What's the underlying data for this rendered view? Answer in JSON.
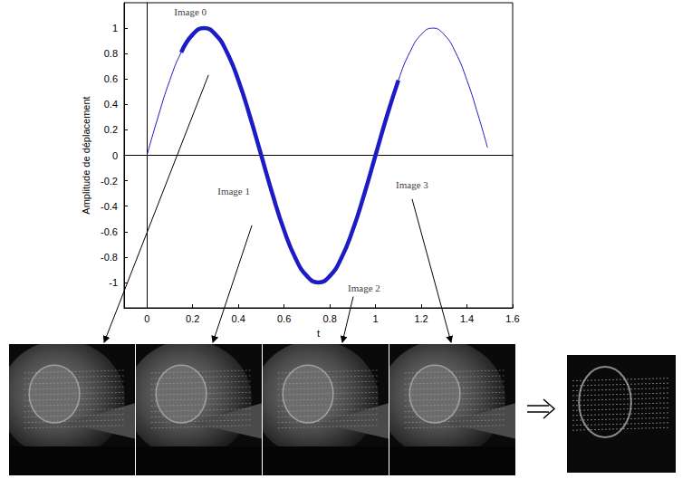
{
  "chart_data": {
    "type": "line",
    "xlabel": "t",
    "ylabel": "Amplitude de déplacement",
    "x": [
      0,
      0.05,
      0.1,
      0.15,
      0.2,
      0.25,
      0.3,
      0.35,
      0.4,
      0.45,
      0.5,
      0.55,
      0.6,
      0.65,
      0.7,
      0.75,
      0.8,
      0.85,
      0.9,
      0.95,
      1.0,
      1.05,
      1.1,
      1.15,
      1.2,
      1.25,
      1.3,
      1.35,
      1.4,
      1.45,
      1.49
    ],
    "values": [
      0,
      0.31,
      0.59,
      0.81,
      0.95,
      1,
      0.95,
      0.81,
      0.59,
      0.31,
      0,
      -0.31,
      -0.59,
      -0.81,
      -0.95,
      -1,
      -0.95,
      -0.81,
      -0.59,
      -0.31,
      0,
      0.31,
      0.59,
      0.81,
      0.95,
      1,
      0.95,
      0.81,
      0.59,
      0.31,
      0.06
    ],
    "color": "#1c1cc4",
    "highlighted_ranges": [
      [
        0.15,
        0.35
      ],
      [
        0.4,
        0.6
      ],
      [
        0.65,
        0.85
      ],
      [
        0.9,
        1.1
      ]
    ],
    "xlim": [
      -0.1,
      1.6
    ],
    "ylim": [
      -1.2,
      1.2
    ],
    "xticks": [
      0,
      0.2,
      0.4,
      0.6,
      0.8,
      1,
      1.2,
      1.4,
      1.6
    ],
    "yticks": [
      -1,
      -0.8,
      -0.6,
      -0.4,
      -0.2,
      0,
      0.2,
      0.4,
      0.6,
      0.8,
      1
    ],
    "grid": false,
    "annotations": [
      {
        "text": "Image 0",
        "x": 0.19,
        "y": 1.13
      },
      {
        "text": "Image 1",
        "x": 0.38,
        "y": -0.28
      },
      {
        "text": "Image 2",
        "x": 0.95,
        "y": -1.04
      },
      {
        "text": "Image 3",
        "x": 1.16,
        "y": -0.23
      }
    ]
  }
}
